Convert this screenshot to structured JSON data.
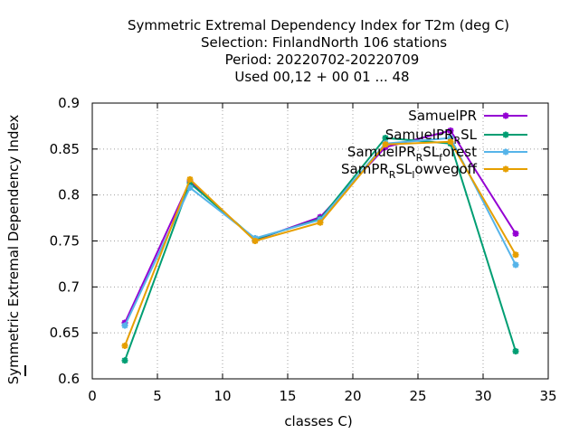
{
  "chart_data": {
    "type": "line",
    "title_lines": [
      "Symmetric Extremal Dependency Index  for T2m (deg C)",
      "Selection: FinlandNorth    106 stations",
      "Period: 20220702-20220709",
      "Used  00,12  + 00 01 ... 48"
    ],
    "xlabel": "classes C)",
    "ylabel": "Symmetric Extremal Dependency Index",
    "xlim": [
      0,
      35
    ],
    "ylim": [
      0.6,
      0.9
    ],
    "xticks": [
      "0",
      "5",
      "10",
      "15",
      "20",
      "25",
      "30",
      "35"
    ],
    "yticks": [
      "0.6",
      "0.65",
      "0.7",
      "0.75",
      "0.8",
      "0.85",
      "0.9"
    ],
    "grid": true,
    "legend_position": "top-right",
    "x": [
      2.5,
      7.5,
      12.5,
      17.5,
      22.5,
      27.5,
      32.5
    ],
    "series": [
      {
        "name": "SamuelPR",
        "color": "#9400d3",
        "values": [
          0.661,
          0.815,
          0.751,
          0.776,
          0.852,
          0.87,
          0.758
        ]
      },
      {
        "name": "SamuelPR_RSL",
        "color": "#009e73",
        "values": [
          0.62,
          0.813,
          0.752,
          0.774,
          0.862,
          0.856,
          0.63
        ]
      },
      {
        "name": "SamuelPR_RSL_forest",
        "color": "#56b4e9",
        "values": [
          0.658,
          0.808,
          0.753,
          0.773,
          0.856,
          0.862,
          0.724
        ]
      },
      {
        "name": "SamPR_RSL_lowvegoff",
        "color": "#e69f00",
        "values": [
          0.636,
          0.817,
          0.75,
          0.77,
          0.855,
          0.858,
          0.735
        ]
      }
    ]
  }
}
